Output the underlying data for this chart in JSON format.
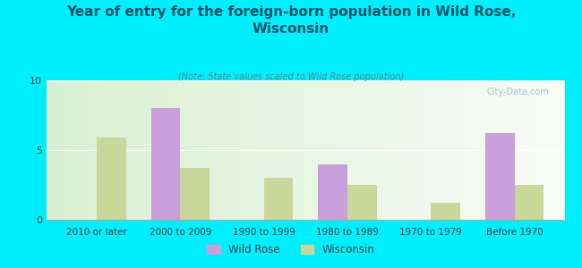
{
  "title": "Year of entry for the foreign-born population in Wild Rose,\nWisconsin",
  "subtitle": "(Note: State values scaled to Wild Rose population)",
  "categories": [
    "2010 or later",
    "2000 to 2009",
    "1990 to 1999",
    "1980 to 1989",
    "1970 to 1979",
    "Before 1970"
  ],
  "wild_rose": [
    0,
    8.0,
    0,
    4.0,
    0,
    6.2
  ],
  "wisconsin": [
    5.9,
    3.7,
    3.0,
    2.5,
    1.2,
    2.5
  ],
  "wild_rose_color": "#c9a0dc",
  "wisconsin_color": "#c8d89a",
  "background_outer": "#00eeff",
  "ylim": [
    0,
    10
  ],
  "yticks": [
    0,
    5,
    10
  ],
  "bar_width": 0.35,
  "watermark": "City-Data.com",
  "title_color": "#005566",
  "subtitle_color": "#558888"
}
